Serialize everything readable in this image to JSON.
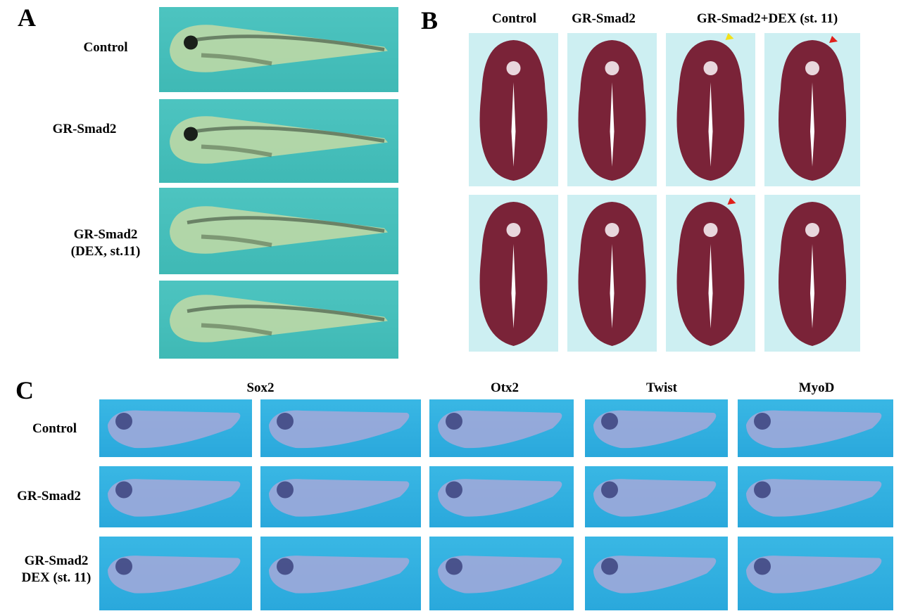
{
  "panel_a": {
    "letter": "A",
    "row_labels": [
      "Control",
      "GR-Smad2",
      "GR-Smad2",
      "(DEX, st.11)"
    ]
  },
  "panel_b": {
    "letter": "B",
    "column_headers": [
      "Control",
      "GR-Smad2",
      "GR-Smad2+DEX (st. 11)"
    ],
    "arrowhead_colors": [
      "#f2e01a",
      "#e0201a"
    ]
  },
  "panel_c": {
    "letter": "C",
    "column_headers": [
      "Sox2",
      "Otx2",
      "Twist",
      "MyoD"
    ],
    "row_labels": [
      "Control",
      "GR-Smad2",
      "GR-Smad2",
      "DEX (st. 11)"
    ]
  }
}
